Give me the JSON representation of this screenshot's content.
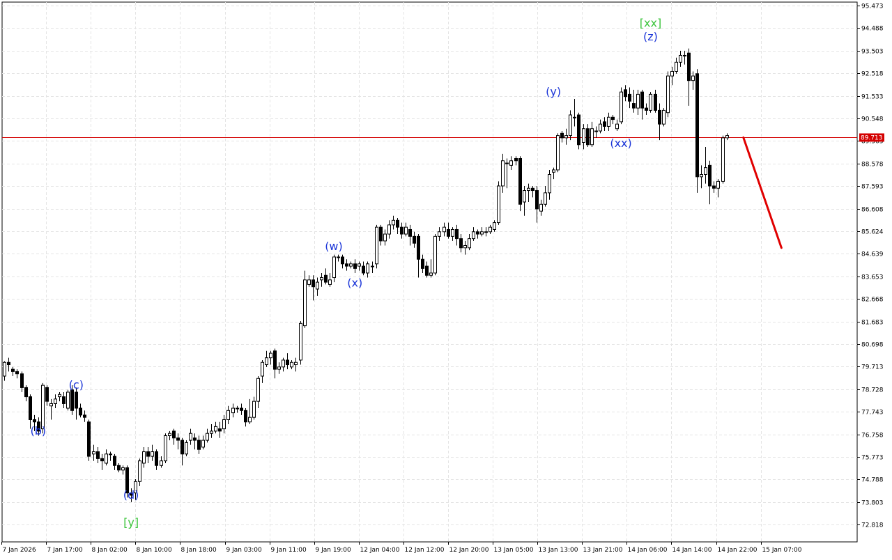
{
  "colors": {
    "background": "#ffffff",
    "grid": "#e4e4e4",
    "candle": "#000000",
    "current_price_line": "#d40000",
    "forecast": "#e00000",
    "wave_blue": "#1c36d8",
    "wave_green": "#3cc43c"
  },
  "chart_data": {
    "type": "candlestick",
    "grid": true,
    "y_range": [
      72.05,
      95.55
    ],
    "y_ticks": [
      "95.473",
      "94.488",
      "93.503",
      "92.518",
      "91.533",
      "90.548",
      "89.563",
      "88.578",
      "87.593",
      "86.608",
      "85.624",
      "84.639",
      "83.653",
      "82.668",
      "81.683",
      "80.698",
      "79.713",
      "78.728",
      "77.743",
      "76.758",
      "75.773",
      "74.788",
      "73.803",
      "72.818"
    ],
    "x_ticks": [
      "7 Jan 2026",
      "7 Jan 17:00",
      "8 Jan 02:00",
      "8 Jan 10:00",
      "8 Jan 18:00",
      "9 Jan 03:00",
      "9 Jan 11:00",
      "9 Jan 19:00",
      "12 Jan 04:00",
      "12 Jan 12:00",
      "12 Jan 20:00",
      "13 Jan 05:00",
      "13 Jan 13:00",
      "13 Jan 21:00",
      "14 Jan 06:00",
      "14 Jan 14:00",
      "14 Jan 22:00",
      "15 Jan 07:00"
    ],
    "current_price": 89.713,
    "current_price_label": "89.713",
    "candles": [
      [
        79.3,
        79.9,
        79.95,
        79.1
      ],
      [
        79.9,
        79.8,
        80.1,
        79.5
      ],
      [
        79.6,
        79.5,
        79.7,
        79.3
      ],
      [
        79.5,
        79.4,
        79.6,
        79.2
      ],
      [
        79.4,
        78.8,
        79.5,
        78.6
      ],
      [
        78.8,
        78.4,
        78.9,
        78.2
      ],
      [
        78.4,
        77.4,
        78.5,
        77.0
      ],
      [
        77.4,
        77.3,
        77.6,
        76.9
      ],
      [
        77.3,
        76.9,
        77.5,
        76.7
      ],
      [
        77.0,
        78.9,
        79.0,
        76.8
      ],
      [
        78.8,
        78.2,
        78.9,
        78.0
      ],
      [
        78.0,
        78.1,
        78.3,
        77.4
      ],
      [
        78.1,
        78.3,
        78.5,
        77.9
      ],
      [
        78.4,
        78.5,
        78.6,
        78.2
      ],
      [
        78.4,
        78.1,
        78.6,
        77.9
      ],
      [
        77.9,
        78.6,
        78.7,
        77.8
      ],
      [
        78.7,
        77.8,
        78.9,
        77.6
      ],
      [
        78.6,
        77.9,
        78.8,
        77.4
      ],
      [
        77.9,
        77.6,
        78.1,
        77.5
      ],
      [
        77.6,
        77.5,
        77.8,
        77.3
      ],
      [
        77.3,
        75.8,
        77.4,
        75.6
      ],
      [
        75.9,
        76.0,
        76.3,
        75.6
      ],
      [
        76.0,
        75.7,
        76.2,
        75.5
      ],
      [
        75.7,
        75.6,
        75.9,
        75.2
      ],
      [
        75.5,
        75.9,
        76.1,
        75.4
      ],
      [
        75.9,
        75.9,
        76.0,
        75.6
      ],
      [
        75.8,
        75.4,
        75.9,
        75.2
      ],
      [
        75.4,
        75.2,
        75.5,
        75.1
      ],
      [
        75.2,
        75.3,
        75.4,
        75.0
      ],
      [
        75.3,
        74.2,
        75.4,
        74.0
      ],
      [
        74.2,
        74.1,
        74.4,
        73.8
      ],
      [
        74.2,
        74.7,
        74.8,
        73.9
      ],
      [
        74.7,
        75.6,
        75.7,
        74.5
      ],
      [
        75.5,
        76.0,
        76.2,
        75.3
      ],
      [
        76.0,
        75.8,
        76.2,
        75.5
      ],
      [
        75.8,
        76.0,
        76.3,
        75.6
      ],
      [
        76.0,
        75.4,
        76.1,
        75.2
      ],
      [
        75.4,
        75.6,
        75.8,
        75.3
      ],
      [
        75.6,
        76.7,
        76.8,
        75.5
      ],
      [
        76.7,
        76.8,
        76.9,
        76.5
      ],
      [
        76.9,
        76.6,
        77.0,
        76.3
      ],
      [
        76.6,
        76.5,
        76.8,
        76.1
      ],
      [
        76.5,
        75.9,
        76.6,
        75.4
      ],
      [
        75.9,
        76.4,
        76.5,
        75.8
      ],
      [
        76.5,
        76.8,
        77.0,
        76.3
      ],
      [
        76.6,
        76.5,
        76.8,
        76.1
      ],
      [
        76.5,
        76.1,
        76.7,
        75.9
      ],
      [
        76.2,
        76.5,
        76.7,
        76.1
      ],
      [
        76.5,
        76.8,
        77.0,
        76.4
      ],
      [
        76.8,
        76.9,
        77.2,
        76.6
      ],
      [
        76.9,
        77.1,
        77.3,
        76.8
      ],
      [
        77.0,
        76.9,
        77.3,
        76.6
      ],
      [
        77.0,
        77.4,
        77.6,
        76.8
      ],
      [
        77.4,
        77.8,
        78.0,
        77.2
      ],
      [
        77.7,
        77.9,
        78.1,
        77.5
      ],
      [
        77.9,
        77.9,
        78.0,
        77.7
      ],
      [
        77.9,
        77.8,
        78.1,
        77.6
      ],
      [
        77.8,
        77.3,
        77.9,
        77.1
      ],
      [
        77.3,
        77.5,
        78.3,
        77.2
      ],
      [
        77.5,
        78.2,
        78.4,
        77.4
      ],
      [
        78.2,
        79.2,
        79.3,
        77.9
      ],
      [
        79.3,
        79.9,
        80.0,
        79.0
      ],
      [
        79.8,
        80.1,
        80.4,
        79.7
      ],
      [
        80.1,
        80.3,
        80.4,
        79.8
      ],
      [
        80.4,
        79.6,
        80.5,
        79.2
      ],
      [
        79.6,
        79.7,
        79.9,
        79.4
      ],
      [
        79.7,
        80.0,
        80.1,
        79.5
      ],
      [
        80.0,
        79.8,
        80.3,
        79.6
      ],
      [
        79.7,
        79.9,
        80.0,
        79.6
      ],
      [
        79.8,
        79.9,
        80.1,
        79.5
      ],
      [
        80.0,
        81.6,
        81.7,
        79.8
      ],
      [
        81.5,
        83.5,
        83.9,
        81.4
      ],
      [
        83.3,
        83.5,
        83.7,
        83.2
      ],
      [
        83.5,
        83.2,
        83.7,
        82.6
      ],
      [
        83.1,
        83.4,
        83.6,
        82.8
      ],
      [
        83.5,
        83.6,
        83.8,
        83.2
      ],
      [
        83.7,
        83.4,
        84.0,
        83.3
      ],
      [
        83.3,
        83.5,
        83.8,
        83.2
      ],
      [
        83.6,
        84.5,
        84.6,
        83.4
      ],
      [
        84.5,
        84.5,
        84.6,
        84.3
      ],
      [
        84.5,
        84.2,
        84.6,
        84.0
      ],
      [
        84.2,
        84.1,
        84.4,
        83.9
      ],
      [
        84.1,
        84.2,
        84.3,
        84.0
      ],
      [
        84.2,
        84.0,
        84.4,
        83.8
      ],
      [
        84.1,
        84.2,
        84.3,
        83.9
      ],
      [
        84.1,
        83.8,
        84.3,
        83.7
      ],
      [
        83.8,
        84.2,
        84.3,
        83.6
      ],
      [
        84.1,
        84.1,
        84.3,
        83.8
      ],
      [
        84.2,
        85.8,
        85.9,
        84.0
      ],
      [
        85.8,
        85.2,
        85.9,
        85.0
      ],
      [
        85.2,
        85.5,
        85.7,
        85.0
      ],
      [
        85.5,
        85.9,
        86.1,
        85.3
      ],
      [
        85.9,
        86.1,
        86.3,
        85.7
      ],
      [
        86.1,
        85.8,
        86.2,
        85.5
      ],
      [
        85.8,
        85.5,
        86.0,
        85.3
      ],
      [
        85.5,
        85.8,
        86.0,
        85.4
      ],
      [
        85.7,
        85.4,
        85.9,
        85.0
      ],
      [
        85.4,
        85.1,
        85.6,
        84.9
      ],
      [
        85.4,
        84.4,
        85.5,
        83.6
      ],
      [
        84.4,
        84.0,
        84.6,
        83.8
      ],
      [
        84.1,
        83.7,
        84.3,
        83.6
      ],
      [
        83.7,
        83.8,
        84.4,
        83.6
      ],
      [
        83.8,
        85.4,
        85.5,
        83.7
      ],
      [
        85.4,
        85.6,
        85.8,
        85.2
      ],
      [
        85.6,
        85.8,
        86.0,
        85.4
      ],
      [
        85.7,
        85.4,
        86.0,
        85.3
      ],
      [
        85.4,
        85.7,
        85.8,
        85.2
      ],
      [
        85.7,
        85.3,
        85.9,
        85.0
      ],
      [
        85.3,
        84.9,
        85.5,
        84.7
      ],
      [
        84.9,
        85.0,
        85.2,
        84.6
      ],
      [
        84.9,
        85.3,
        85.5,
        84.8
      ],
      [
        85.3,
        85.6,
        85.8,
        85.2
      ],
      [
        85.6,
        85.5,
        85.7,
        85.3
      ],
      [
        85.5,
        85.6,
        85.8,
        85.4
      ],
      [
        85.6,
        85.6,
        85.8,
        85.4
      ],
      [
        85.6,
        85.8,
        85.9,
        85.5
      ],
      [
        85.7,
        86.0,
        86.1,
        85.6
      ],
      [
        86.0,
        87.6,
        87.8,
        85.9
      ],
      [
        87.6,
        88.7,
        89.0,
        87.3
      ],
      [
        88.6,
        88.6,
        88.8,
        87.5
      ],
      [
        88.5,
        88.7,
        88.9,
        88.3
      ],
      [
        88.8,
        88.7,
        88.9,
        88.5
      ],
      [
        88.8,
        86.8,
        88.9,
        86.5
      ],
      [
        86.9,
        87.4,
        87.6,
        86.3
      ],
      [
        87.4,
        87.5,
        87.7,
        86.9
      ],
      [
        87.5,
        87.4,
        87.6,
        87.1
      ],
      [
        87.4,
        86.6,
        87.6,
        86.0
      ],
      [
        86.5,
        86.8,
        87.0,
        86.3
      ],
      [
        86.8,
        87.3,
        87.6,
        86.7
      ],
      [
        87.3,
        88.1,
        88.3,
        87.0
      ],
      [
        88.2,
        88.3,
        88.4,
        87.9
      ],
      [
        88.3,
        89.8,
        89.9,
        88.2
      ],
      [
        89.9,
        89.7,
        90.0,
        89.5
      ],
      [
        89.7,
        89.8,
        90.1,
        89.4
      ],
      [
        89.8,
        90.7,
        90.9,
        89.6
      ],
      [
        90.6,
        90.6,
        91.4,
        90.2
      ],
      [
        90.7,
        89.4,
        90.8,
        89.2
      ],
      [
        89.5,
        90.1,
        90.3,
        89.2
      ],
      [
        90.1,
        89.4,
        90.3,
        89.3
      ],
      [
        89.4,
        90.1,
        90.4,
        89.3
      ],
      [
        90.0,
        90.0,
        90.2,
        89.7
      ],
      [
        90.0,
        90.3,
        90.5,
        89.9
      ],
      [
        90.4,
        90.2,
        90.6,
        90.0
      ],
      [
        90.2,
        90.6,
        90.8,
        90.0
      ],
      [
        90.6,
        90.5,
        90.7,
        90.3
      ],
      [
        90.1,
        90.3,
        90.5,
        90.0
      ],
      [
        90.4,
        91.7,
        91.9,
        90.3
      ],
      [
        91.8,
        91.5,
        92.0,
        91.3
      ],
      [
        91.6,
        91.3,
        91.9,
        91.0
      ],
      [
        91.2,
        91.0,
        91.8,
        90.8
      ],
      [
        91.0,
        91.6,
        91.8,
        90.7
      ],
      [
        91.7,
        91.0,
        91.8,
        90.5
      ],
      [
        91.0,
        90.9,
        91.2,
        90.7
      ],
      [
        90.9,
        91.6,
        91.7,
        90.8
      ],
      [
        91.6,
        90.9,
        91.8,
        90.8
      ],
      [
        90.9,
        90.3,
        91.2,
        89.6
      ],
      [
        90.3,
        90.9,
        91.0,
        90.2
      ],
      [
        90.8,
        92.4,
        92.6,
        90.6
      ],
      [
        92.4,
        92.6,
        92.8,
        92.0
      ],
      [
        92.6,
        93.0,
        93.2,
        92.5
      ],
      [
        93.0,
        93.3,
        93.5,
        92.8
      ],
      [
        93.3,
        93.3,
        93.5,
        92.9
      ],
      [
        93.4,
        92.2,
        93.6,
        91.1
      ],
      [
        92.2,
        92.4,
        92.6,
        91.8
      ],
      [
        92.5,
        88.0,
        92.7,
        87.3
      ],
      [
        88.0,
        88.1,
        88.5,
        87.5
      ],
      [
        88.1,
        88.4,
        89.3,
        87.7
      ],
      [
        88.5,
        87.6,
        88.7,
        86.8
      ],
      [
        87.6,
        87.5,
        87.8,
        87.3
      ],
      [
        87.5,
        87.8,
        87.9,
        87.1
      ],
      [
        87.8,
        89.7,
        89.8,
        87.7
      ],
      [
        89.7,
        89.8,
        89.9,
        89.6
      ]
    ],
    "forecast_line": {
      "from": {
        "bar": 175,
        "price": 89.713
      },
      "to": {
        "bar": 184,
        "price": 84.9
      }
    },
    "wave_labels": [
      {
        "text": "(b)",
        "bar": 8,
        "price": 76.75,
        "color": "blue"
      },
      {
        "text": "(c)",
        "bar": 17,
        "price": 78.75,
        "color": "blue"
      },
      {
        "text": "(d)",
        "bar": 30,
        "price": 73.95,
        "color": "blue"
      },
      {
        "text": "[y]",
        "bar": 30,
        "price": 72.75,
        "color": "green"
      },
      {
        "text": "(w)",
        "bar": 78,
        "price": 84.8,
        "color": "blue"
      },
      {
        "text": "(x)",
        "bar": 83,
        "price": 83.2,
        "color": "blue"
      },
      {
        "text": "(y)",
        "bar": 130,
        "price": 91.55,
        "color": "blue"
      },
      {
        "text": "(xx)",
        "bar": 146,
        "price": 89.3,
        "color": "blue"
      },
      {
        "text": "(z)",
        "bar": 153,
        "price": 93.95,
        "color": "blue"
      },
      {
        "text": "[xx]",
        "bar": 153,
        "price": 94.55,
        "color": "green"
      }
    ]
  }
}
